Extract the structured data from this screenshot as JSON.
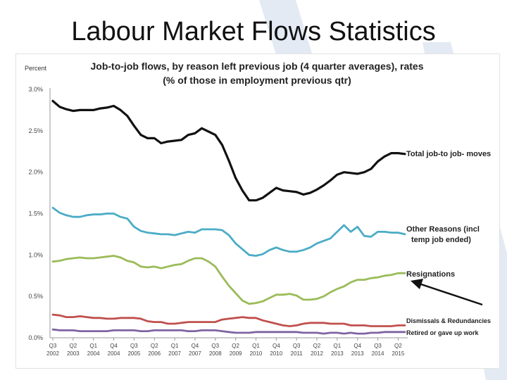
{
  "slide": {
    "title": "Labour Market Flows Statistics"
  },
  "chart_data": {
    "type": "line",
    "title": "Job-to-job flows, by reason left previous job (4 quarter averages), rates",
    "subtitle": "(% of those in employment previous qtr)",
    "ylabel": "Percent",
    "ylim": [
      0,
      3.0
    ],
    "y_ticks": [
      "3.0%",
      "2.5%",
      "2.0%",
      "1.5%",
      "1.0%",
      "0.5%",
      "0.0%"
    ],
    "y_tick_values": [
      3.0,
      2.5,
      2.0,
      1.5,
      1.0,
      0.5,
      0.0
    ],
    "x_tick_quarters": [
      "Q3",
      "Q2",
      "Q1",
      "Q4",
      "Q3",
      "Q2",
      "Q1",
      "Q4",
      "Q3",
      "Q2",
      "Q1",
      "Q4",
      "Q3",
      "Q2",
      "Q1",
      "Q4",
      "Q3",
      "Q2"
    ],
    "x_tick_years": [
      "2002",
      "2003",
      "2004",
      "2004",
      "2005",
      "2006",
      "2007",
      "2007",
      "2008",
      "2009",
      "2010",
      "2010",
      "2011",
      "2012",
      "2013",
      "2013",
      "2014",
      "2015"
    ],
    "x_tick_index": [
      0,
      3,
      6,
      9,
      12,
      15,
      18,
      21,
      24,
      27,
      30,
      33,
      36,
      39,
      42,
      45,
      48,
      51
    ],
    "grid": false,
    "legend": "right-inline",
    "series": [
      {
        "name": "Total job-to job- moves",
        "color": "#111111",
        "values": [
          2.86,
          2.79,
          2.76,
          2.74,
          2.75,
          2.75,
          2.75,
          2.77,
          2.78,
          2.8,
          2.75,
          2.68,
          2.56,
          2.45,
          2.41,
          2.41,
          2.35,
          2.37,
          2.38,
          2.39,
          2.45,
          2.47,
          2.53,
          2.49,
          2.45,
          2.33,
          2.14,
          1.93,
          1.78,
          1.66,
          1.66,
          1.69,
          1.75,
          1.81,
          1.78,
          1.77,
          1.76,
          1.73,
          1.75,
          1.79,
          1.84,
          1.9,
          1.97,
          2.0,
          1.99,
          1.98,
          2.0,
          2.04,
          2.13,
          2.19,
          2.23,
          2.23,
          2.22
        ]
      },
      {
        "name": "Other Reasons (incl temp job ended)",
        "color": "#4bacc6",
        "values": [
          1.57,
          1.51,
          1.48,
          1.46,
          1.46,
          1.48,
          1.49,
          1.49,
          1.5,
          1.5,
          1.46,
          1.44,
          1.34,
          1.29,
          1.27,
          1.26,
          1.25,
          1.25,
          1.24,
          1.26,
          1.28,
          1.27,
          1.31,
          1.31,
          1.31,
          1.3,
          1.24,
          1.14,
          1.07,
          1.0,
          0.99,
          1.01,
          1.06,
          1.09,
          1.06,
          1.04,
          1.04,
          1.06,
          1.09,
          1.14,
          1.17,
          1.2,
          1.28,
          1.36,
          1.28,
          1.34,
          1.23,
          1.22,
          1.28,
          1.28,
          1.27,
          1.27,
          1.25
        ]
      },
      {
        "name": "Resignations",
        "color": "#9bbb59",
        "values": [
          0.92,
          0.93,
          0.95,
          0.96,
          0.97,
          0.96,
          0.96,
          0.97,
          0.98,
          0.99,
          0.97,
          0.93,
          0.91,
          0.86,
          0.85,
          0.86,
          0.84,
          0.86,
          0.88,
          0.89,
          0.93,
          0.96,
          0.96,
          0.92,
          0.86,
          0.74,
          0.63,
          0.54,
          0.45,
          0.41,
          0.42,
          0.44,
          0.48,
          0.52,
          0.52,
          0.53,
          0.51,
          0.46,
          0.46,
          0.47,
          0.5,
          0.55,
          0.59,
          0.62,
          0.67,
          0.7,
          0.7,
          0.72,
          0.73,
          0.75,
          0.76,
          0.78,
          0.78
        ]
      },
      {
        "name": "Dismissals & Redundancies",
        "color": "#c0504d",
        "values": [
          0.28,
          0.27,
          0.25,
          0.25,
          0.26,
          0.25,
          0.24,
          0.24,
          0.23,
          0.23,
          0.24,
          0.24,
          0.24,
          0.23,
          0.2,
          0.19,
          0.19,
          0.17,
          0.17,
          0.18,
          0.19,
          0.19,
          0.19,
          0.19,
          0.19,
          0.22,
          0.23,
          0.24,
          0.25,
          0.24,
          0.24,
          0.21,
          0.19,
          0.17,
          0.15,
          0.14,
          0.15,
          0.17,
          0.18,
          0.18,
          0.18,
          0.17,
          0.17,
          0.17,
          0.15,
          0.15,
          0.15,
          0.14,
          0.14,
          0.14,
          0.14,
          0.15,
          0.15
        ]
      },
      {
        "name": "Retired or gave up work",
        "color": "#8064a2",
        "values": [
          0.1,
          0.09,
          0.09,
          0.09,
          0.08,
          0.08,
          0.08,
          0.08,
          0.08,
          0.09,
          0.09,
          0.09,
          0.09,
          0.08,
          0.08,
          0.09,
          0.09,
          0.09,
          0.09,
          0.09,
          0.08,
          0.08,
          0.09,
          0.09,
          0.09,
          0.08,
          0.07,
          0.06,
          0.06,
          0.06,
          0.07,
          0.07,
          0.07,
          0.07,
          0.07,
          0.07,
          0.07,
          0.06,
          0.06,
          0.06,
          0.05,
          0.06,
          0.06,
          0.05,
          0.06,
          0.05,
          0.05,
          0.06,
          0.06,
          0.07,
          0.07,
          0.07,
          0.07
        ]
      }
    ]
  },
  "colors": {
    "axis": "#999999",
    "tick_text": "#444444",
    "arrow": "#111111",
    "watermark": "#dde6f0"
  }
}
